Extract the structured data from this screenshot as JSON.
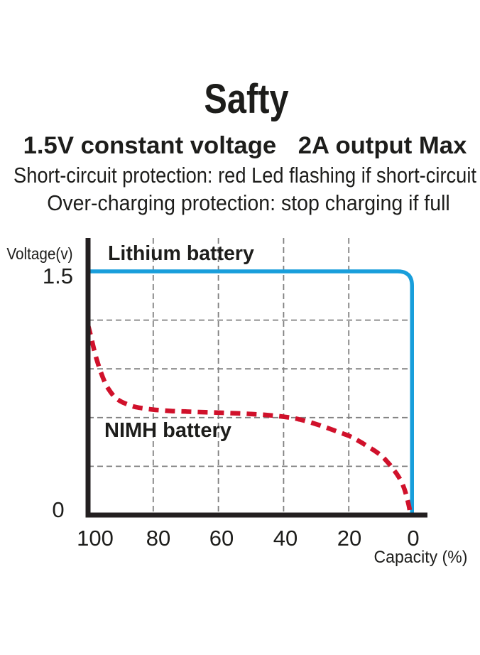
{
  "header": {
    "title": "Safty",
    "subtitle_left": "1.5V constant voltage",
    "subtitle_right": "2A output Max",
    "protection_line_1": "Short-circuit protection: red Led flashing if short-circuit",
    "protection_line_2": "Over-charging protection: stop charging if full"
  },
  "chart_data": {
    "type": "line",
    "title": "",
    "xlabel": "Capacity (%)",
    "ylabel": "Voltage(v)",
    "x_ticks": [
      100,
      80,
      60,
      40,
      20,
      0
    ],
    "x_axis_reversed": true,
    "y_tick_labels": [
      "1.5",
      "0"
    ],
    "xlim": [
      100,
      0
    ],
    "ylim": [
      0,
      1.5
    ],
    "grid_style": "dashed",
    "grid_color": "#808080",
    "axis_color": "#231f20",
    "x_gridlines": [
      80,
      60,
      40,
      20
    ],
    "y_gridlines": [
      1.2,
      0.9,
      0.6,
      0.3
    ],
    "series": [
      {
        "name": "Lithium battery",
        "color": "#189edb",
        "line_style": "solid",
        "points": [
          [
            100,
            1.5
          ],
          [
            0.6,
            1.5
          ],
          [
            0.6,
            0.01
          ]
        ]
      },
      {
        "name": "NIMH battery",
        "color": "#d0112b",
        "line_style": "dashed",
        "points": [
          [
            100,
            1.17
          ],
          [
            99,
            1.09
          ],
          [
            98,
            1.005
          ],
          [
            97,
            0.935
          ],
          [
            96,
            0.875
          ],
          [
            95,
            0.825
          ],
          [
            94,
            0.785
          ],
          [
            92,
            0.73
          ],
          [
            90,
            0.7
          ],
          [
            88,
            0.682
          ],
          [
            86,
            0.668
          ],
          [
            84,
            0.66
          ],
          [
            82,
            0.654
          ],
          [
            80,
            0.649
          ],
          [
            77,
            0.644
          ],
          [
            74,
            0.64
          ],
          [
            70,
            0.637
          ],
          [
            66,
            0.634
          ],
          [
            62,
            0.632
          ],
          [
            58,
            0.629
          ],
          [
            54,
            0.626
          ],
          [
            50,
            0.622
          ],
          [
            46,
            0.617
          ],
          [
            42,
            0.61
          ],
          [
            38,
            0.6
          ],
          [
            35,
            0.588
          ],
          [
            32,
            0.572
          ],
          [
            29,
            0.553
          ],
          [
            26,
            0.532
          ],
          [
            23,
            0.51
          ],
          [
            20,
            0.488
          ],
          [
            18,
            0.468
          ],
          [
            16,
            0.445
          ],
          [
            14,
            0.42
          ],
          [
            12,
            0.395
          ],
          [
            10,
            0.365
          ],
          [
            8.5,
            0.335
          ],
          [
            7,
            0.3
          ],
          [
            6,
            0.273
          ],
          [
            5,
            0.245
          ],
          [
            4.2,
            0.218
          ],
          [
            3.5,
            0.19
          ],
          [
            2.9,
            0.158
          ],
          [
            2.4,
            0.125
          ],
          [
            2,
            0.095
          ],
          [
            1.6,
            0.06
          ],
          [
            1.3,
            0.03
          ],
          [
            1.1,
            0.005
          ]
        ]
      }
    ]
  }
}
